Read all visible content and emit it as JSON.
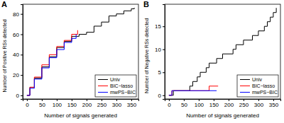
{
  "chart_data": [
    {
      "type": "line",
      "title": "A",
      "x_label": "Number of signals generated",
      "y_label": "Number of Positive RSs detected",
      "xlim": [
        -14,
        374
      ],
      "ylim": [
        -3.5,
        89.5
      ],
      "xticks": [
        0,
        50,
        100,
        150,
        200,
        250,
        300,
        350
      ],
      "yticks": [
        0,
        20,
        40,
        60,
        80
      ],
      "line_style": "step",
      "legend": "bottomright",
      "grid": false,
      "series": [
        {
          "name": "Univ",
          "color": "#000000",
          "x": [
            0,
            10,
            25,
            50,
            75,
            100,
            125,
            150,
            175,
            200,
            225,
            250,
            275,
            300,
            325,
            350,
            360
          ],
          "values": [
            0,
            8,
            17,
            28,
            38,
            47,
            53,
            58,
            60,
            62,
            68,
            72,
            78,
            80,
            83,
            85,
            86
          ]
        },
        {
          "name": "BIC−lasso",
          "color": "#ff0000",
          "x": [
            0,
            10,
            25,
            50,
            75,
            100,
            125,
            150,
            170
          ],
          "values": [
            0,
            8,
            18,
            30,
            40,
            48,
            54,
            60,
            64
          ]
        },
        {
          "name": "mwPS−BIC",
          "color": "#0000ff",
          "x": [
            0,
            10,
            25,
            50,
            75,
            100,
            125,
            150,
            165
          ],
          "values": [
            0,
            7,
            16,
            27,
            37,
            45,
            52,
            56,
            60
          ]
        }
      ]
    },
    {
      "type": "line",
      "title": "B",
      "x_label": "Number of signals generated",
      "y_label": "Number of Negative RSs detected",
      "xlim": [
        -14,
        374
      ],
      "ylim": [
        -0.8,
        19.8
      ],
      "xticks": [
        0,
        50,
        100,
        150,
        200,
        250,
        300,
        350
      ],
      "yticks": [
        0,
        5,
        10,
        15
      ],
      "line_style": "step",
      "legend": "bottomright",
      "grid": false,
      "series": [
        {
          "name": "Univ",
          "color": "#000000",
          "x": [
            0,
            15,
            70,
            80,
            95,
            105,
            125,
            135,
            160,
            180,
            215,
            225,
            250,
            280,
            300,
            320,
            330,
            340,
            350,
            360
          ],
          "values": [
            0,
            1,
            2,
            3,
            4,
            5,
            6,
            7,
            8,
            9,
            10,
            11,
            12,
            13,
            14,
            15,
            16,
            17,
            18,
            19
          ]
        },
        {
          "name": "BIC−lasso",
          "color": "#ff0000",
          "x": [
            0,
            10,
            135,
            165
          ],
          "values": [
            0,
            1,
            2,
            2
          ]
        },
        {
          "name": "mwPS−BIC",
          "color": "#0000ff",
          "x": [
            0,
            10,
            160
          ],
          "values": [
            0,
            1,
            1
          ]
        }
      ]
    }
  ]
}
